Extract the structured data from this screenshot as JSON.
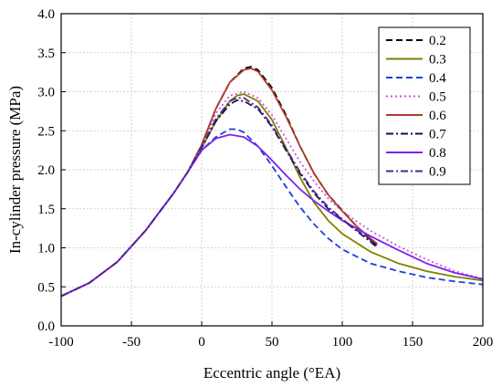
{
  "chart_data": {
    "type": "line",
    "title": "",
    "xlabel": "Eccentric angle (°EA)",
    "ylabel": "In-cylinder pressure (MPa)",
    "xlim": [
      -100,
      200
    ],
    "ylim": [
      0.0,
      4.0
    ],
    "xticks": [
      -100,
      -50,
      0,
      50,
      100,
      150,
      200
    ],
    "yticks": [
      0.0,
      0.5,
      1.0,
      1.5,
      2.0,
      2.5,
      3.0,
      3.5,
      4.0
    ],
    "xtick_labels": [
      "-100",
      "-50",
      "0",
      "50",
      "100",
      "150",
      "200"
    ],
    "ytick_labels": [
      "0.0",
      "0.5",
      "1.0",
      "1.5",
      "2.0",
      "2.5",
      "3.0",
      "3.5",
      "4.0"
    ],
    "grid": true,
    "legend_position": "top-right",
    "series": [
      {
        "name": "0.2",
        "color": "#000000",
        "dash": "dash",
        "x": [
          -100,
          -80,
          -60,
          -40,
          -20,
          -10,
          0,
          10,
          20,
          30,
          35,
          40,
          50,
          60,
          70,
          80,
          90,
          100,
          110,
          120,
          125
        ],
        "y": [
          0.38,
          0.55,
          0.82,
          1.22,
          1.7,
          1.97,
          2.32,
          2.78,
          3.12,
          3.3,
          3.32,
          3.28,
          3.05,
          2.7,
          2.3,
          1.95,
          1.68,
          1.48,
          1.28,
          1.1,
          1.02
        ]
      },
      {
        "name": "0.3",
        "color": "#808000",
        "dash": "solid",
        "x": [
          -100,
          -80,
          -60,
          -40,
          -20,
          -10,
          0,
          10,
          20,
          25,
          30,
          40,
          50,
          60,
          70,
          80,
          90,
          100,
          120,
          140,
          160,
          180,
          200
        ],
        "y": [
          0.38,
          0.55,
          0.82,
          1.22,
          1.7,
          1.97,
          2.28,
          2.62,
          2.88,
          2.95,
          2.97,
          2.88,
          2.64,
          2.28,
          1.9,
          1.58,
          1.35,
          1.18,
          0.95,
          0.8,
          0.7,
          0.63,
          0.58
        ]
      },
      {
        "name": "0.4",
        "color": "#1f3fdc",
        "dash": "dash",
        "x": [
          -100,
          -80,
          -60,
          -40,
          -20,
          -10,
          0,
          10,
          20,
          25,
          30,
          40,
          50,
          60,
          70,
          80,
          90,
          100,
          120,
          140,
          160,
          180,
          200
        ],
        "y": [
          0.38,
          0.55,
          0.82,
          1.22,
          1.7,
          1.97,
          2.25,
          2.42,
          2.52,
          2.52,
          2.48,
          2.3,
          2.05,
          1.78,
          1.52,
          1.3,
          1.12,
          0.98,
          0.8,
          0.7,
          0.62,
          0.57,
          0.53
        ]
      },
      {
        "name": "0.5",
        "color": "#d24fe0",
        "dash": "dot",
        "x": [
          -100,
          -80,
          -60,
          -40,
          -20,
          -10,
          0,
          10,
          20,
          30,
          40,
          50,
          60,
          70,
          80,
          90,
          100,
          110,
          120,
          140,
          160,
          180,
          200
        ],
        "y": [
          0.38,
          0.55,
          0.82,
          1.22,
          1.7,
          1.97,
          2.3,
          2.72,
          2.95,
          3.0,
          2.92,
          2.7,
          2.4,
          2.1,
          1.85,
          1.63,
          1.47,
          1.34,
          1.22,
          1.02,
          0.85,
          0.7,
          0.6
        ]
      },
      {
        "name": "0.6",
        "color": "#b03a2e",
        "dash": "solid",
        "x": [
          -100,
          -80,
          -60,
          -40,
          -20,
          -10,
          0,
          10,
          20,
          30,
          35,
          40,
          50,
          60,
          70,
          80,
          90,
          100,
          110,
          120,
          125
        ],
        "y": [
          0.38,
          0.55,
          0.82,
          1.22,
          1.7,
          1.97,
          2.32,
          2.78,
          3.12,
          3.28,
          3.3,
          3.26,
          3.02,
          2.68,
          2.3,
          1.95,
          1.68,
          1.47,
          1.28,
          1.12,
          1.05
        ]
      },
      {
        "name": "0.7",
        "color": "#101050",
        "dash": "dashdot",
        "x": [
          -100,
          -80,
          -60,
          -40,
          -20,
          -10,
          0,
          10,
          20,
          25,
          30,
          40,
          50,
          60,
          70,
          80,
          90,
          100,
          110,
          120,
          125
        ],
        "y": [
          0.38,
          0.55,
          0.82,
          1.22,
          1.7,
          1.97,
          2.28,
          2.62,
          2.84,
          2.89,
          2.88,
          2.78,
          2.55,
          2.25,
          1.95,
          1.7,
          1.5,
          1.36,
          1.22,
          1.08,
          1.0
        ]
      },
      {
        "name": "0.8",
        "color": "#7b22ee",
        "dash": "solid",
        "x": [
          -100,
          -80,
          -60,
          -40,
          -20,
          -10,
          0,
          10,
          20,
          30,
          40,
          50,
          60,
          70,
          80,
          90,
          100,
          110,
          120,
          140,
          160,
          180,
          200
        ],
        "y": [
          0.38,
          0.55,
          0.82,
          1.22,
          1.7,
          1.97,
          2.25,
          2.4,
          2.45,
          2.42,
          2.3,
          2.12,
          1.93,
          1.75,
          1.6,
          1.47,
          1.35,
          1.25,
          1.15,
          0.97,
          0.8,
          0.68,
          0.6
        ]
      },
      {
        "name": "0.9",
        "color": "#4b2a8a",
        "dash": "dashdot",
        "x": [
          -100,
          -80,
          -60,
          -40,
          -20,
          -10,
          0,
          10,
          20,
          25,
          30,
          40,
          50,
          60,
          70,
          80,
          90,
          100,
          110,
          120,
          125
        ],
        "y": [
          0.38,
          0.55,
          0.82,
          1.22,
          1.7,
          1.97,
          2.3,
          2.65,
          2.88,
          2.92,
          2.92,
          2.8,
          2.57,
          2.27,
          1.97,
          1.72,
          1.52,
          1.37,
          1.23,
          1.1,
          1.02
        ]
      }
    ]
  }
}
